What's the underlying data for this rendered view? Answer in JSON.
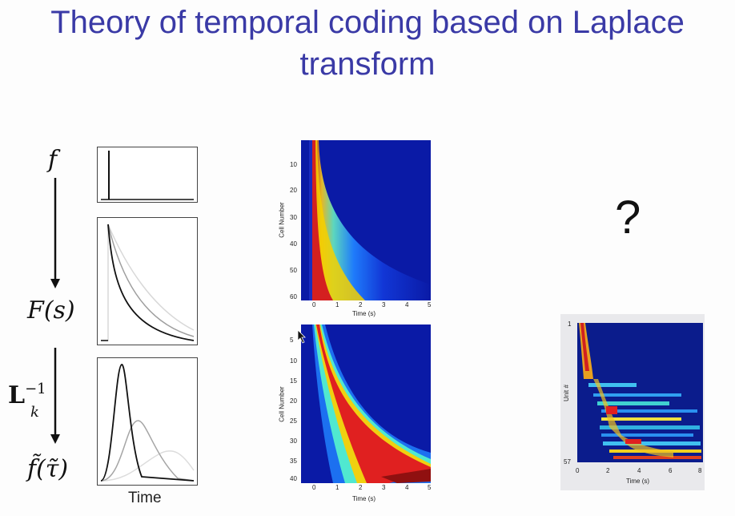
{
  "title_line1": "Theory of temporal coding based on Laplace",
  "title_line2": "transform",
  "left_diagram": {
    "symbol_f": "f",
    "symbol_F": "F(s)",
    "symbol_inverse": "L",
    "symbol_inverse_sub": "k",
    "symbol_inverse_sup": "−1",
    "symbol_ftilde": "f̃(τ̃)",
    "xlabel": "Time"
  },
  "heatmap_top": {
    "ylabel": "Cell Number",
    "xlabel": "Time (s)",
    "yticks": [
      "10",
      "20",
      "30",
      "40",
      "50",
      "60"
    ],
    "xticks": [
      "0",
      "1",
      "2",
      "3",
      "4",
      "5"
    ]
  },
  "heatmap_bottom": {
    "ylabel": "Cell Number",
    "xlabel": "Time (s)",
    "yticks": [
      "5",
      "10",
      "15",
      "20",
      "25",
      "30",
      "35",
      "40"
    ],
    "xticks": [
      "0",
      "1",
      "2",
      "3",
      "4",
      "5"
    ]
  },
  "question_mark": "?",
  "data_heatmap": {
    "ylabel": "Unit #",
    "xlabel": "Time (s)",
    "yticks": [
      "1",
      "57"
    ],
    "xticks": [
      "0",
      "2",
      "4",
      "6",
      "8"
    ]
  }
}
